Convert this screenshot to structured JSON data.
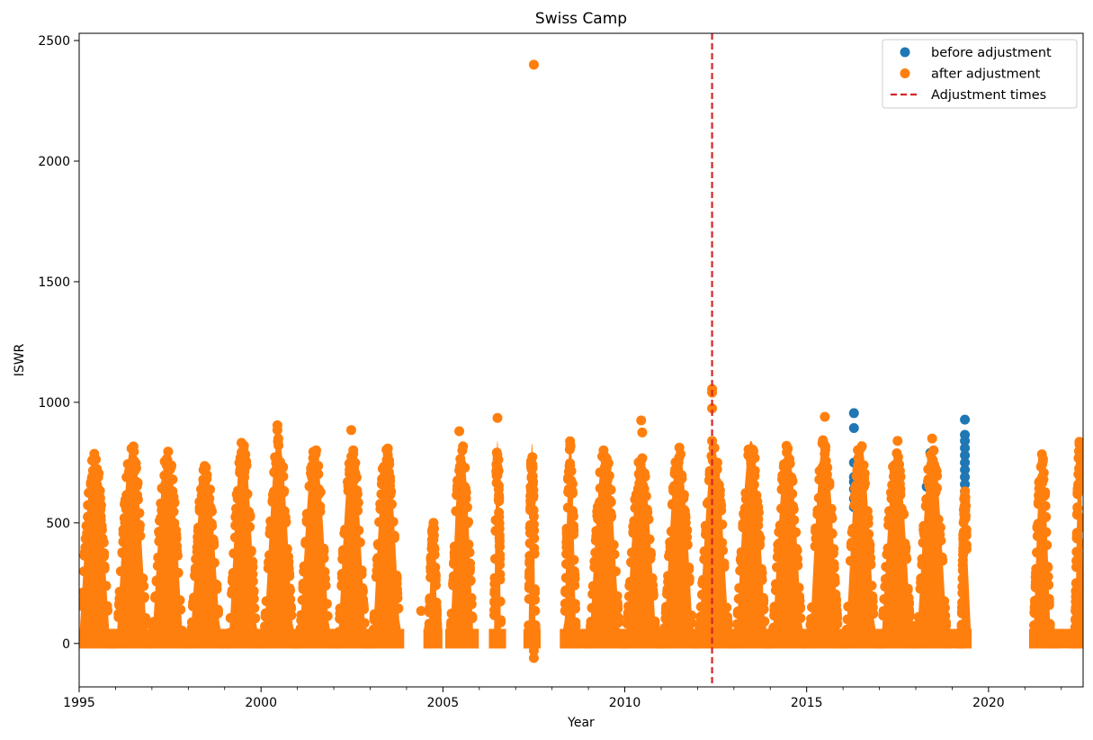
{
  "chart_data": {
    "type": "scatter",
    "title": "Swiss Camp",
    "xlabel": "Year",
    "ylabel": "ISWR",
    "xlim": [
      1995,
      2022.6
    ],
    "ylim": [
      -180,
      2530
    ],
    "xticks": [
      1995,
      2000,
      2005,
      2010,
      2015,
      2020
    ],
    "yticks": [
      0,
      500,
      1000,
      1500,
      2000,
      2500
    ],
    "grid": false,
    "legend_position": "top-right",
    "colors": {
      "before": "#1f77b4",
      "after": "#ff7f0e",
      "adjustment": "#d62728"
    },
    "legend": [
      {
        "label": "before adjustment",
        "kind": "marker",
        "color": "#1f77b4"
      },
      {
        "label": "after adjustment",
        "kind": "marker",
        "color": "#ff7f0e"
      },
      {
        "label": "Adjustment times",
        "kind": "dashed-line",
        "color": "#d62728"
      }
    ],
    "adjustment_times": [
      2012.4
    ],
    "series": [
      {
        "name": "after adjustment",
        "seasons": [
          {
            "start": 1995.0,
            "end": 1995.85,
            "peak_time": 1995.42,
            "peak": 770
          },
          {
            "start": 1996.0,
            "end": 1996.85,
            "peak_time": 1996.45,
            "peak": 810
          },
          {
            "start": 1997.0,
            "end": 1997.85,
            "peak_time": 1997.43,
            "peak": 790
          },
          {
            "start": 1998.0,
            "end": 1998.85,
            "peak_time": 1998.47,
            "peak": 725
          },
          {
            "start": 1999.0,
            "end": 1999.85,
            "peak_time": 1999.5,
            "peak": 820
          },
          {
            "start": 2000.0,
            "end": 2000.85,
            "peak_time": 2000.48,
            "peak": 830
          },
          {
            "start": 2001.0,
            "end": 2001.85,
            "peak_time": 2001.47,
            "peak": 800
          },
          {
            "start": 2002.0,
            "end": 2002.85,
            "peak_time": 2002.5,
            "peak": 800
          },
          {
            "start": 2003.0,
            "end": 2003.8,
            "peak_time": 2003.45,
            "peak": 800
          },
          {
            "start": 2004.6,
            "end": 2004.85,
            "peak_time": 2004.73,
            "peak": 500
          },
          {
            "start": 2005.2,
            "end": 2005.85,
            "peak_time": 2005.52,
            "peak": 820
          },
          {
            "start": 2006.4,
            "end": 2006.6,
            "peak_time": 2006.5,
            "peak": 820
          },
          {
            "start": 2007.35,
            "end": 2007.55,
            "peak_time": 2007.45,
            "peak": 810
          },
          {
            "start": 2008.35,
            "end": 2008.85,
            "peak_time": 2008.5,
            "peak": 820
          },
          {
            "start": 2009.0,
            "end": 2009.85,
            "peak_time": 2009.45,
            "peak": 800
          },
          {
            "start": 2010.0,
            "end": 2010.85,
            "peak_time": 2010.45,
            "peak": 760
          },
          {
            "start": 2011.0,
            "end": 2011.85,
            "peak_time": 2011.48,
            "peak": 800
          },
          {
            "start": 2012.0,
            "end": 2012.85,
            "peak_time": 2012.45,
            "peak": 790
          },
          {
            "start": 2013.0,
            "end": 2013.85,
            "peak_time": 2013.47,
            "peak": 820
          },
          {
            "start": 2014.0,
            "end": 2014.85,
            "peak_time": 2014.47,
            "peak": 800
          },
          {
            "start": 2015.0,
            "end": 2015.85,
            "peak_time": 2015.48,
            "peak": 830
          },
          {
            "start": 2016.0,
            "end": 2016.85,
            "peak_time": 2016.48,
            "peak": 820
          },
          {
            "start": 2017.0,
            "end": 2017.85,
            "peak_time": 2017.47,
            "peak": 780
          },
          {
            "start": 2018.0,
            "end": 2018.85,
            "peak_time": 2018.45,
            "peak": 790
          },
          {
            "start": 2019.0,
            "end": 2019.4,
            "peak_time": 2019.35,
            "peak": 620
          },
          {
            "start": 2021.25,
            "end": 2021.85,
            "peak_time": 2021.47,
            "peak": 770
          },
          {
            "start": 2022.0,
            "end": 2022.6,
            "peak_time": 2022.5,
            "peak": 830
          }
        ],
        "outliers": [
          [
            2007.5,
            2400
          ],
          [
            2000.45,
            905
          ],
          [
            2000.45,
            885
          ],
          [
            2002.48,
            885
          ],
          [
            2005.45,
            880
          ],
          [
            2006.5,
            935
          ],
          [
            2010.45,
            925
          ],
          [
            2010.48,
            875
          ],
          [
            2012.4,
            1055
          ],
          [
            2012.4,
            1040
          ],
          [
            2012.4,
            975
          ],
          [
            2012.4,
            840
          ],
          [
            2015.5,
            940
          ],
          [
            2017.5,
            840
          ],
          [
            2018.45,
            850
          ],
          [
            2004.4,
            135
          ],
          [
            2007.5,
            -60
          ],
          [
            2007.5,
            -30
          ],
          [
            1999.4,
            525
          ],
          [
            1999.55,
            500
          ]
        ]
      },
      {
        "name": "before adjustment",
        "points": [
          [
            2016.3,
            955
          ],
          [
            2016.3,
            893
          ],
          [
            2016.3,
            750
          ],
          [
            2016.3,
            690
          ],
          [
            2016.3,
            670
          ],
          [
            2016.3,
            640
          ],
          [
            2016.3,
            600
          ],
          [
            2016.3,
            565
          ],
          [
            2018.4,
            790
          ],
          [
            2018.3,
            650
          ],
          [
            2019.35,
            928
          ],
          [
            2019.35,
            865
          ],
          [
            2019.35,
            840
          ],
          [
            2019.35,
            810
          ],
          [
            2019.35,
            780
          ],
          [
            2019.35,
            750
          ],
          [
            2019.35,
            720
          ],
          [
            2019.35,
            690
          ],
          [
            2019.35,
            660
          ],
          [
            2019.35,
            630
          ]
        ]
      }
    ]
  }
}
